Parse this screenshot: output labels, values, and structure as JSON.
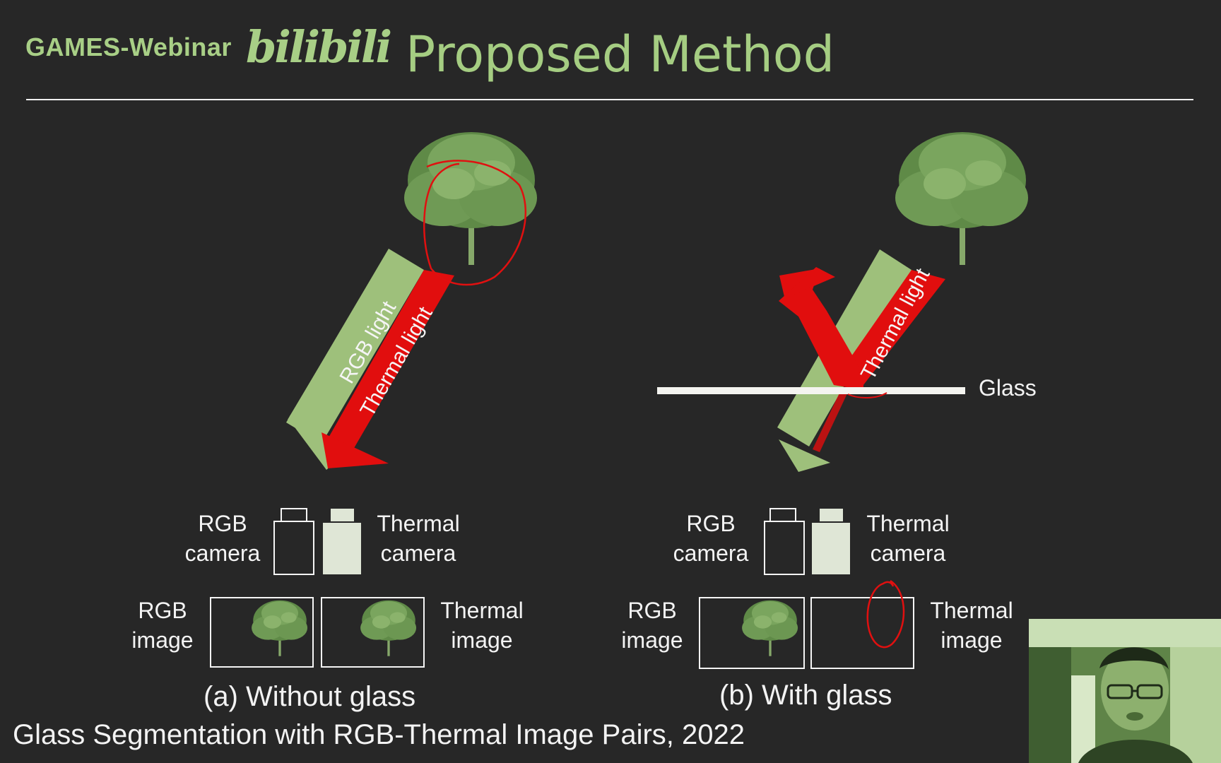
{
  "header": {
    "brand": "GAMES-Webinar",
    "logo_text": "bilibili",
    "title": "Proposed Method"
  },
  "panels": {
    "a": {
      "caption": "(a) Without glass",
      "rgb_light": "RGB light",
      "thermal_light": "Thermal light",
      "rgb_camera": [
        "RGB",
        "camera"
      ],
      "thermal_camera": [
        "Thermal",
        "camera"
      ],
      "rgb_image": [
        "RGB",
        "image"
      ],
      "thermal_image": [
        "Thermal",
        "image"
      ]
    },
    "b": {
      "caption": "(b) With glass",
      "thermal_light": "Thermal light",
      "glass": "Glass",
      "rgb_camera": [
        "RGB",
        "camera"
      ],
      "thermal_camera": [
        "Thermal",
        "camera"
      ],
      "rgb_image": [
        "RGB",
        "image"
      ],
      "thermal_image": [
        "Thermal",
        "image"
      ]
    }
  },
  "footer": "Glass Segmentation with RGB-Thermal Image Pairs, 2022",
  "colors": {
    "background": "#272727",
    "accent_green": "#9dc37a",
    "rgb_light": "#9ec07b",
    "thermal_light": "#e10e0e",
    "annotation": "#e01010",
    "tree": "#6f9a55"
  },
  "icons": [
    "tree-icon",
    "rgb-camera-icon",
    "thermal-camera-icon",
    "presenter-webcam"
  ]
}
